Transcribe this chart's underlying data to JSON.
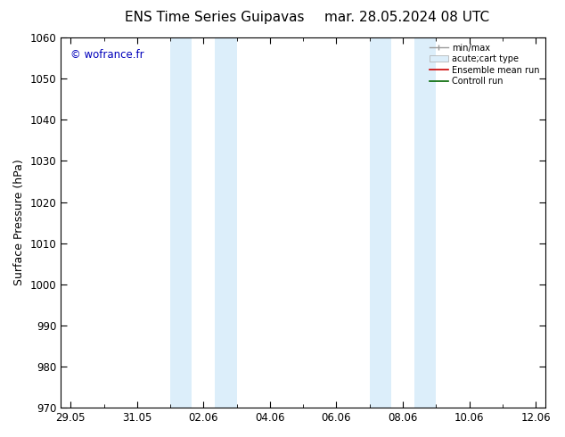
{
  "title_left": "ENS Time Series Guipavas",
  "title_right": "mar. 28.05.2024 08 UTC",
  "ylabel": "Surface Pressure (hPa)",
  "ylim": [
    970,
    1060
  ],
  "yticks": [
    970,
    980,
    990,
    1000,
    1010,
    1020,
    1030,
    1040,
    1050,
    1060
  ],
  "xtick_labels": [
    "29.05",
    "31.05",
    "02.06",
    "04.06",
    "06.06",
    "08.06",
    "10.06",
    "12.06"
  ],
  "xtick_positions": [
    0,
    2,
    4,
    6,
    8,
    10,
    12,
    14
  ],
  "xlim": [
    -0.3,
    14.3
  ],
  "shaded_bands": [
    {
      "xmin": 3.0,
      "xmax": 3.65
    },
    {
      "xmin": 4.35,
      "xmax": 5.0
    },
    {
      "xmin": 9.0,
      "xmax": 9.65
    },
    {
      "xmin": 10.35,
      "xmax": 11.0
    }
  ],
  "shaded_color": "#dceefa",
  "watermark": "© wofrance.fr",
  "watermark_color": "#0000bb",
  "background_color": "#ffffff",
  "title_fontsize": 11,
  "label_fontsize": 9,
  "tick_fontsize": 8.5
}
